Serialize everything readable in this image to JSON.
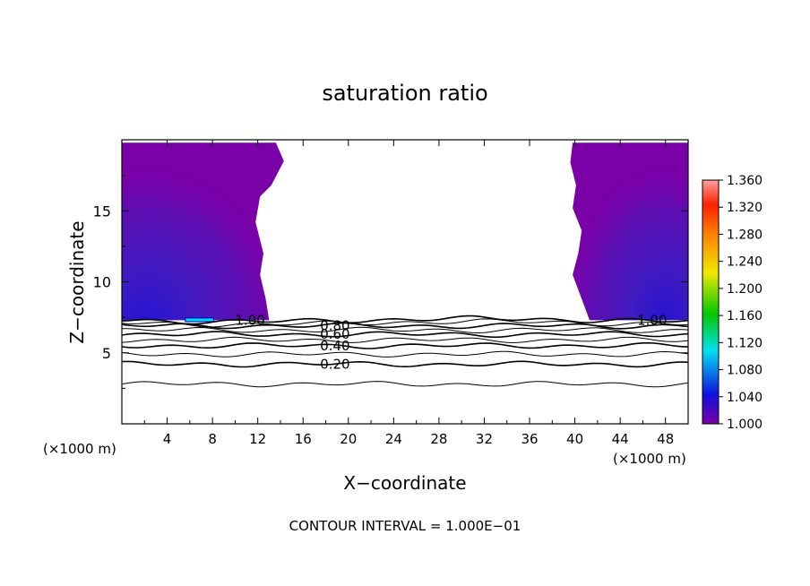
{
  "chart_data": {
    "type": "contour",
    "title": "saturation ratio",
    "xlabel": "X−coordinate",
    "ylabel": "Z−coordinate",
    "x_unit_left": "(×1000 m)",
    "x_unit_right": "(×1000 m)",
    "footer": "CONTOUR INTERVAL = 1.000E−01",
    "xlim": [
      0,
      50
    ],
    "ylim": [
      0,
      20
    ],
    "x_ticks": [
      4,
      8,
      12,
      16,
      20,
      24,
      28,
      32,
      36,
      40,
      44,
      48
    ],
    "x_tick_labels": [
      "4",
      "8",
      "12",
      "16",
      "20",
      "24",
      "28",
      "32",
      "36",
      "40",
      "44",
      "48"
    ],
    "y_ticks": [
      5,
      10,
      15
    ],
    "y_tick_labels": [
      "5",
      "10",
      "15"
    ],
    "colorbar": {
      "min": 1.0,
      "max": 1.36,
      "tick_labels": [
        "1.360",
        "1.320",
        "1.280",
        "1.240",
        "1.200",
        "1.160",
        "1.120",
        "1.080",
        "1.040",
        "1.000"
      ],
      "tick_values": [
        1.36,
        1.32,
        1.28,
        1.24,
        1.2,
        1.16,
        1.12,
        1.08,
        1.04,
        1.0
      ]
    },
    "contour_levels": [
      0.1,
      0.2,
      0.3,
      0.4,
      0.5,
      0.6,
      0.7,
      0.8,
      0.9,
      1.0
    ],
    "contour_label_texts": [
      "0.20",
      "0.40",
      "0.60",
      "0.80",
      "1.00",
      "1.00"
    ],
    "contour_z": [
      2.8,
      4.2,
      4.9,
      5.5,
      5.9,
      6.3,
      6.6,
      6.9,
      7.1,
      7.3
    ],
    "contour_labels": [
      {
        "text_index": 0,
        "x": 17.5,
        "z": 4.2
      },
      {
        "text_index": 1,
        "x": 17.5,
        "z": 5.5
      },
      {
        "text_index": 2,
        "x": 17.5,
        "z": 6.3
      },
      {
        "text_index": 3,
        "x": 17.5,
        "z": 6.9
      },
      {
        "text_index": 4,
        "x": 10.0,
        "z": 7.3
      },
      {
        "text_index": 5,
        "x": 45.5,
        "z": 7.3
      }
    ],
    "supersaturated_region_left": {
      "boundary": [
        [
          0,
          19.8
        ],
        [
          13.6,
          19.8
        ],
        [
          14.3,
          18.5
        ],
        [
          13.2,
          16.8
        ],
        [
          12.2,
          16.0
        ],
        [
          11.8,
          14.2
        ],
        [
          12.5,
          12.0
        ],
        [
          12.2,
          10.5
        ],
        [
          12.7,
          8.8
        ],
        [
          13.0,
          7.3
        ],
        [
          0,
          7.3
        ]
      ]
    },
    "supersaturated_region_right": {
      "boundary": [
        [
          39.8,
          19.8
        ],
        [
          50,
          19.8
        ],
        [
          50,
          7.3
        ],
        [
          41.3,
          7.3
        ],
        [
          40.6,
          8.8
        ],
        [
          39.8,
          10.5
        ],
        [
          40.3,
          12.0
        ],
        [
          40.6,
          13.6
        ],
        [
          39.8,
          15.2
        ],
        [
          40.1,
          16.8
        ],
        [
          39.6,
          18.4
        ]
      ]
    }
  }
}
